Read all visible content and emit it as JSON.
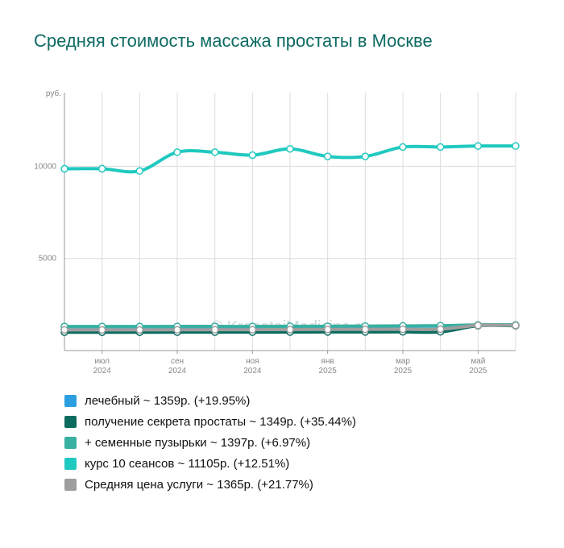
{
  "title": "Средняя стоимость массажа простаты в Москве",
  "watermark": "© KrasotaiMedicina.ru",
  "chart_data": {
    "type": "line",
    "y_unit": "руб.",
    "ylim": [
      0,
      14000
    ],
    "yticks": [
      5000,
      10000
    ],
    "grid": true,
    "legend_position": "bottom",
    "x": [
      "2024-05",
      "2024-06",
      "2024-07",
      "2024-08",
      "2024-09",
      "2024-10",
      "2024-11",
      "2024-12",
      "2025-01",
      "2025-02",
      "2025-03",
      "2025-04",
      "2025-05"
    ],
    "x_tick_labels": [
      {
        "index": 1,
        "month": "июл",
        "year": "2024"
      },
      {
        "index": 3,
        "month": "сен",
        "year": "2024"
      },
      {
        "index": 5,
        "month": "ноя",
        "year": "2024"
      },
      {
        "index": 7,
        "month": "янв",
        "year": "2025"
      },
      {
        "index": 9,
        "month": "мар",
        "year": "2025"
      },
      {
        "index": 11,
        "month": "май",
        "year": "2025"
      }
    ],
    "series": [
      {
        "name": "лечебный",
        "legend": "лечебный ~ 1359р. (+19.95%)",
        "color": "#2b9fe0",
        "values": [
          1133,
          1133,
          1133,
          1140,
          1145,
          1150,
          1160,
          1165,
          1170,
          1175,
          1180,
          1359,
          1359
        ]
      },
      {
        "name": "получение секрета простаты",
        "legend": "получение секрета простаты ~ 1349р. (+35.44%)",
        "color": "#0b6b5f",
        "values": [
          996,
          996,
          996,
          1000,
          1000,
          1000,
          1005,
          1010,
          1010,
          1015,
          1015,
          1349,
          1349
        ]
      },
      {
        "name": "+ семенные пузырьки",
        "legend": "+ семенные пузырьки ~ 1397р. (+6.97%)",
        "color": "#38b0a2",
        "values": [
          1306,
          1306,
          1306,
          1310,
          1310,
          1310,
          1320,
          1320,
          1330,
          1340,
          1350,
          1397,
          1397
        ]
      },
      {
        "name": "курс 10 сеансов",
        "legend": "курс 10 сеансов ~ 11105р. (+12.51%)",
        "color": "#1fc9bf",
        "values": [
          9870,
          9870,
          9750,
          10770,
          10770,
          10610,
          10950,
          10540,
          10540,
          11050,
          11050,
          11105,
          11105
        ]
      },
      {
        "name": "Средняя цена услуги",
        "legend": "Средняя цена услуги ~ 1365р. (+21.77%)",
        "color": "#9e9e9e",
        "values": [
          1121,
          1121,
          1121,
          1125,
          1130,
          1130,
          1140,
          1145,
          1150,
          1155,
          1160,
          1365,
          1365
        ]
      }
    ]
  }
}
